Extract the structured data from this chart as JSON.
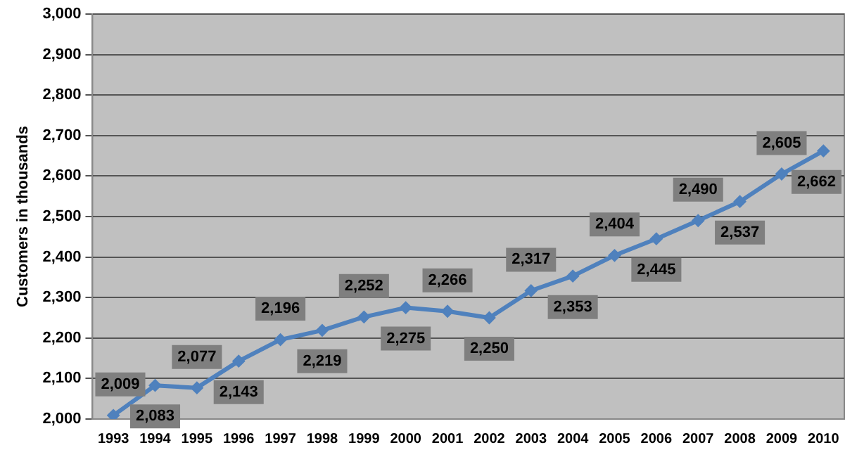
{
  "chart_data": {
    "type": "line",
    "ylabel": "Customers in thousands",
    "categories": [
      "1993",
      "1994",
      "1995",
      "1996",
      "1997",
      "1998",
      "1999",
      "2000",
      "2001",
      "2002",
      "2003",
      "2004",
      "2005",
      "2006",
      "2007",
      "2008",
      "2009",
      "2010"
    ],
    "series": [
      {
        "color": "#4f81bd",
        "values": [
          2009,
          2083,
          2077,
          2143,
          2196,
          2219,
          2252,
          2275,
          2266,
          2250,
          2317,
          2353,
          2404,
          2445,
          2490,
          2537,
          2605,
          2662
        ],
        "value_labels": [
          "2,009",
          "2,083",
          "2,077",
          "2,143",
          "2,196",
          "2,219",
          "2,252",
          "2,275",
          "2,266",
          "2,250",
          "2,317",
          "2,353",
          "2,404",
          "2,445",
          "2,490",
          "2,537",
          "2,605",
          "2,662"
        ]
      }
    ],
    "ylim": [
      2000,
      3000
    ],
    "yticks": [
      {
        "value": 2000,
        "label": "2,000"
      },
      {
        "value": 2100,
        "label": "2,100"
      },
      {
        "value": 2200,
        "label": "2,200"
      },
      {
        "value": 2300,
        "label": "2,300"
      },
      {
        "value": 2400,
        "label": "2,400"
      },
      {
        "value": 2500,
        "label": "2,500"
      },
      {
        "value": 2600,
        "label": "2,600"
      },
      {
        "value": 2700,
        "label": "2,700"
      },
      {
        "value": 2800,
        "label": "2,800"
      },
      {
        "value": 2900,
        "label": "2,900"
      },
      {
        "value": 3000,
        "label": "3,000"
      }
    ],
    "grid": "y",
    "legend": false,
    "marker": "diamond",
    "line_style": "solid"
  }
}
